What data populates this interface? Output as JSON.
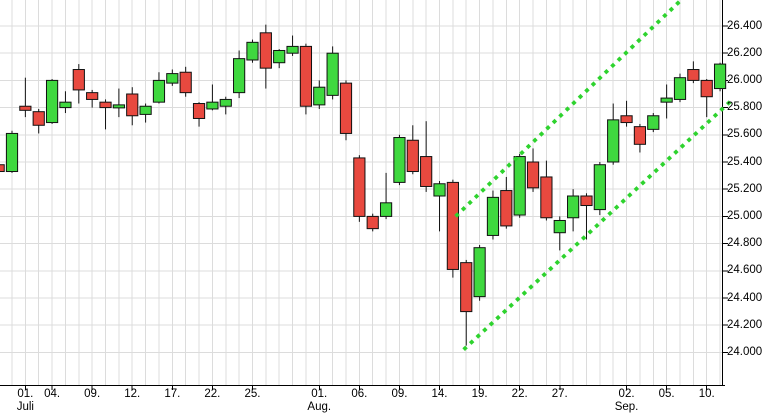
{
  "window": {
    "background": "#ffffff"
  },
  "chart_data": {
    "type": "candlestick",
    "title": "",
    "legend": "none",
    "grid": "on",
    "y_axis": {
      "side": "right",
      "tick_labels": [
        "26.400",
        "26.200",
        "26.000",
        "25.800",
        "25.600",
        "25.400",
        "25.200",
        "25.000",
        "24.800",
        "24.600",
        "24.400",
        "24.200",
        "24.000"
      ],
      "tick_values": [
        26.4,
        26.2,
        26.0,
        25.8,
        25.6,
        25.4,
        25.2,
        25.0,
        24.8,
        24.6,
        24.4,
        24.2,
        24.0
      ],
      "ylim": [
        23.86,
        26.59
      ]
    },
    "x_axis": {
      "ticks": [
        {
          "index": 2,
          "day": "01.",
          "month": "Juli"
        },
        {
          "index": 4,
          "day": "04.",
          "month": ""
        },
        {
          "index": 7,
          "day": "09.",
          "month": ""
        },
        {
          "index": 10,
          "day": "12.",
          "month": ""
        },
        {
          "index": 13,
          "day": "17.",
          "month": ""
        },
        {
          "index": 16,
          "day": "22.",
          "month": ""
        },
        {
          "index": 19,
          "day": "25.",
          "month": ""
        },
        {
          "index": 24,
          "day": "01.",
          "month": "Aug."
        },
        {
          "index": 27,
          "day": "06.",
          "month": ""
        },
        {
          "index": 30,
          "day": "09.",
          "month": ""
        },
        {
          "index": 33,
          "day": "14.",
          "month": ""
        },
        {
          "index": 36,
          "day": "19.",
          "month": ""
        },
        {
          "index": 39,
          "day": "22.",
          "month": ""
        },
        {
          "index": 42,
          "day": "27.",
          "month": ""
        },
        {
          "index": 47,
          "day": "02.",
          "month": "Sep."
        },
        {
          "index": 50,
          "day": "05.",
          "month": ""
        },
        {
          "index": 53,
          "day": "10.",
          "month": ""
        }
      ]
    },
    "candles": [
      {
        "date": "Jun 27",
        "open": 25.38,
        "high": 25.39,
        "low": 25.31,
        "close": 25.33
      },
      {
        "date": "Jun 28",
        "open": 25.33,
        "high": 25.63,
        "low": 25.32,
        "close": 25.61
      },
      {
        "date": "Jul 01",
        "open": 25.81,
        "high": 26.02,
        "low": 25.73,
        "close": 25.78
      },
      {
        "date": "Jul 02",
        "open": 25.77,
        "high": 25.79,
        "low": 25.61,
        "close": 25.67
      },
      {
        "date": "Jul 03",
        "open": 25.69,
        "high": 26.01,
        "low": 25.68,
        "close": 26.0
      },
      {
        "date": "Jul 04",
        "open": 25.8,
        "high": 25.92,
        "low": 25.76,
        "close": 25.84
      },
      {
        "date": "Jul 05",
        "open": 26.08,
        "high": 26.12,
        "low": 25.83,
        "close": 25.93
      },
      {
        "date": "Jul 08",
        "open": 25.91,
        "high": 25.93,
        "low": 25.8,
        "close": 25.86
      },
      {
        "date": "Jul 09",
        "open": 25.84,
        "high": 25.86,
        "low": 25.64,
        "close": 25.8
      },
      {
        "date": "Jul 10",
        "open": 25.81,
        "high": 25.94,
        "low": 25.73,
        "close": 25.82
      },
      {
        "date": "Jul 11",
        "open": 25.9,
        "high": 25.95,
        "low": 25.67,
        "close": 25.74
      },
      {
        "date": "Jul 12",
        "open": 25.75,
        "high": 25.83,
        "low": 25.69,
        "close": 25.81
      },
      {
        "date": "Jul 15",
        "open": 25.84,
        "high": 26.06,
        "low": 25.83,
        "close": 26.0
      },
      {
        "date": "Jul 16",
        "open": 25.98,
        "high": 26.08,
        "low": 25.96,
        "close": 26.05
      },
      {
        "date": "Jul 17",
        "open": 26.06,
        "high": 26.1,
        "low": 25.88,
        "close": 25.91
      },
      {
        "date": "Jul 18",
        "open": 25.83,
        "high": 25.84,
        "low": 25.66,
        "close": 25.72
      },
      {
        "date": "Jul 19",
        "open": 25.79,
        "high": 25.97,
        "low": 25.78,
        "close": 25.84
      },
      {
        "date": "Jul 22",
        "open": 25.81,
        "high": 25.88,
        "low": 25.75,
        "close": 25.86
      },
      {
        "date": "Jul 23",
        "open": 25.91,
        "high": 26.22,
        "low": 25.87,
        "close": 26.16
      },
      {
        "date": "Jul 24",
        "open": 26.15,
        "high": 26.3,
        "low": 26.13,
        "close": 26.28
      },
      {
        "date": "Jul 25",
        "open": 26.35,
        "high": 26.41,
        "low": 25.94,
        "close": 26.09
      },
      {
        "date": "Jul 26",
        "open": 26.13,
        "high": 26.23,
        "low": 26.09,
        "close": 26.22
      },
      {
        "date": "Jul 29",
        "open": 26.2,
        "high": 26.33,
        "low": 26.18,
        "close": 26.25
      },
      {
        "date": "Jul 30",
        "open": 26.25,
        "high": 26.27,
        "low": 25.75,
        "close": 25.81
      },
      {
        "date": "Jul 31",
        "open": 25.82,
        "high": 26.0,
        "low": 25.79,
        "close": 25.95
      },
      {
        "date": "Aug 01",
        "open": 25.89,
        "high": 26.25,
        "low": 25.86,
        "close": 26.2
      },
      {
        "date": "Aug 02",
        "open": 25.98,
        "high": 26.0,
        "low": 25.56,
        "close": 25.61
      },
      {
        "date": "Aug 05",
        "open": 25.43,
        "high": 25.45,
        "low": 24.96,
        "close": 25.0
      },
      {
        "date": "Aug 06",
        "open": 25.0,
        "high": 25.02,
        "low": 24.89,
        "close": 24.91
      },
      {
        "date": "Aug 07",
        "open": 25.0,
        "high": 25.32,
        "low": 24.98,
        "close": 25.1
      },
      {
        "date": "Aug 08",
        "open": 25.25,
        "high": 25.6,
        "low": 25.23,
        "close": 25.58
      },
      {
        "date": "Aug 09",
        "open": 25.56,
        "high": 25.67,
        "low": 25.31,
        "close": 25.33
      },
      {
        "date": "Aug 12",
        "open": 25.44,
        "high": 25.7,
        "low": 25.18,
        "close": 25.22
      },
      {
        "date": "Aug 13",
        "open": 25.15,
        "high": 25.26,
        "low": 24.89,
        "close": 25.24
      },
      {
        "date": "Aug 14",
        "open": 25.25,
        "high": 25.27,
        "low": 24.55,
        "close": 24.61
      },
      {
        "date": "Aug 15",
        "open": 24.66,
        "high": 24.68,
        "low": 24.05,
        "close": 24.3
      },
      {
        "date": "Aug 16",
        "open": 24.41,
        "high": 24.79,
        "low": 24.38,
        "close": 24.77
      },
      {
        "date": "Aug 19",
        "open": 24.86,
        "high": 25.19,
        "low": 24.83,
        "close": 25.14
      },
      {
        "date": "Aug 20",
        "open": 25.19,
        "high": 25.29,
        "low": 24.91,
        "close": 24.93
      },
      {
        "date": "Aug 21",
        "open": 25.01,
        "high": 25.46,
        "low": 24.99,
        "close": 25.44
      },
      {
        "date": "Aug 22",
        "open": 25.4,
        "high": 25.5,
        "low": 25.18,
        "close": 25.21
      },
      {
        "date": "Aug 23",
        "open": 25.29,
        "high": 25.41,
        "low": 24.97,
        "close": 24.99
      },
      {
        "date": "Aug 26",
        "open": 24.88,
        "high": 25.0,
        "low": 24.75,
        "close": 24.97
      },
      {
        "date": "Aug 27",
        "open": 24.99,
        "high": 25.2,
        "low": 24.89,
        "close": 25.15
      },
      {
        "date": "Aug 28",
        "open": 25.15,
        "high": 25.17,
        "low": 24.83,
        "close": 25.08
      },
      {
        "date": "Aug 29",
        "open": 25.05,
        "high": 25.4,
        "low": 25.01,
        "close": 25.38
      },
      {
        "date": "Aug 30",
        "open": 25.4,
        "high": 25.83,
        "low": 25.38,
        "close": 25.71
      },
      {
        "date": "Sep 02",
        "open": 25.74,
        "high": 25.85,
        "low": 25.66,
        "close": 25.69
      },
      {
        "date": "Sep 03",
        "open": 25.66,
        "high": 25.68,
        "low": 25.47,
        "close": 25.53
      },
      {
        "date": "Sep 04",
        "open": 25.64,
        "high": 25.76,
        "low": 25.62,
        "close": 25.74
      },
      {
        "date": "Sep 05",
        "open": 25.84,
        "high": 25.97,
        "low": 25.72,
        "close": 25.87
      },
      {
        "date": "Sep 06",
        "open": 25.86,
        "high": 26.05,
        "low": 25.84,
        "close": 26.02
      },
      {
        "date": "Sep 09",
        "open": 26.08,
        "high": 26.14,
        "low": 25.98,
        "close": 26.0
      },
      {
        "date": "Sep 10",
        "open": 26.0,
        "high": 26.01,
        "low": 25.73,
        "close": 25.88
      },
      {
        "date": "Sep 11",
        "open": 25.94,
        "high": 26.13,
        "low": 25.92,
        "close": 26.12
      }
    ],
    "trend_channel": {
      "style": "dotted",
      "lines": [
        {
          "name": "upper-dotted-trendline",
          "x1_index": 34.31,
          "y1_price": 25.01,
          "x2_index": 51.6,
          "y2_price": 26.64
        },
        {
          "name": "lower-dotted-trendline",
          "x1_index": 34.91,
          "y1_price": 24.03,
          "x2_index": 55.04,
          "y2_price": 25.87
        }
      ]
    },
    "colors": {
      "up": "#3fd83f",
      "down": "#e8493f",
      "candle_border": "#111111",
      "trend": "#2ed32e",
      "grid": "#dcdcdc",
      "axis": "#000000",
      "label": "#000000",
      "background": "#ffffff"
    }
  }
}
